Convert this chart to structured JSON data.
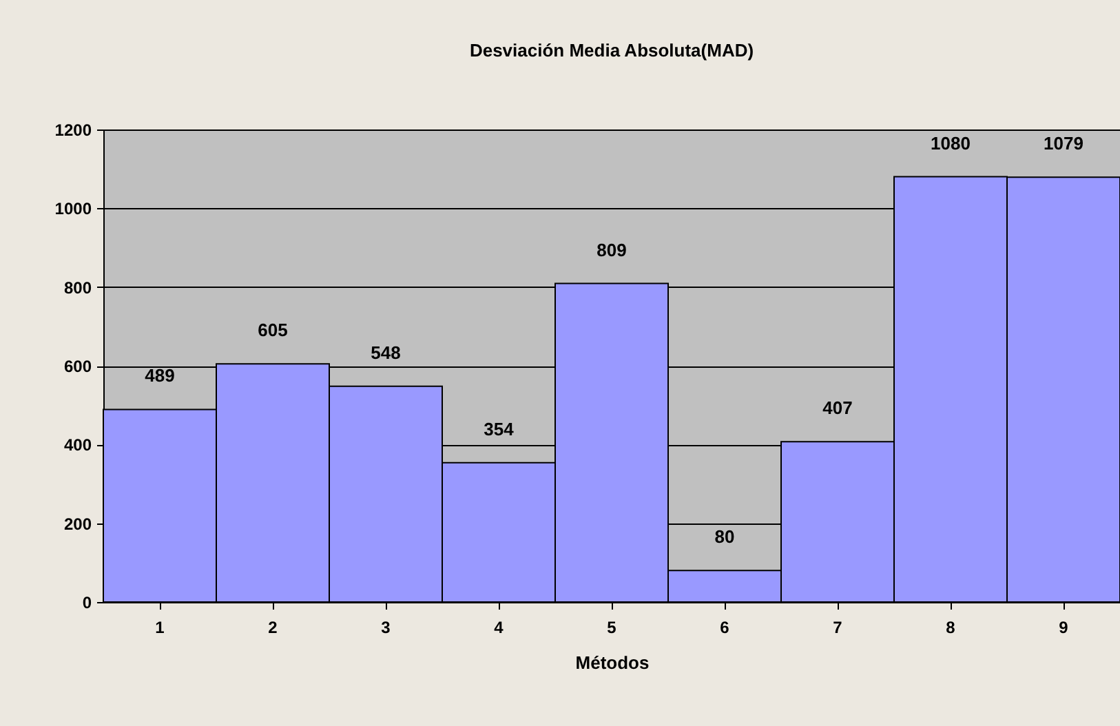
{
  "chart_data": {
    "type": "bar",
    "title": "Desviación Media Absoluta(MAD)",
    "xlabel": "Métodos",
    "categories": [
      "1",
      "2",
      "3",
      "4",
      "5",
      "6",
      "7",
      "8",
      "9"
    ],
    "values": [
      489,
      605,
      548,
      354,
      809,
      80,
      407,
      1080,
      1079
    ],
    "color": "#9999ff",
    "ylim": [
      0,
      1200
    ],
    "yticks": [
      0,
      200,
      400,
      600,
      800,
      1000,
      1200
    ],
    "grid": "y",
    "data_labels": true
  }
}
